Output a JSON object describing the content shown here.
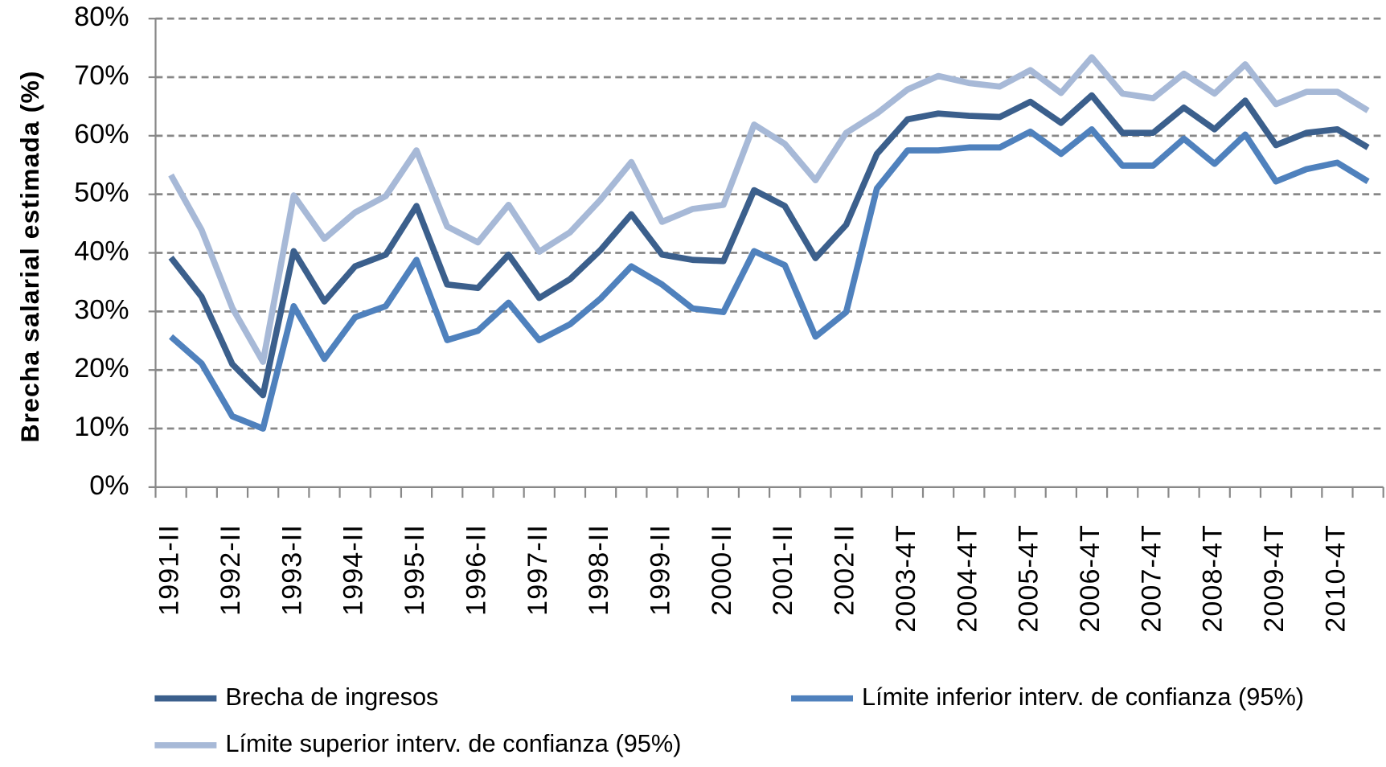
{
  "chart_data": {
    "type": "line",
    "y_label": "Brecha salarial  estimada (%)",
    "categories": [
      "1991-II",
      null,
      "1992-II",
      null,
      "1993-II",
      null,
      "1994-II",
      null,
      "1995-II",
      null,
      "1996-II",
      null,
      "1997-II",
      null,
      "1998-II",
      null,
      "1999-II",
      null,
      "2000-II",
      null,
      "2001-II",
      null,
      "2002-II",
      null,
      "2003-4T",
      null,
      "2004-4T",
      null,
      "2005-4T",
      null,
      "2006-4T",
      null,
      "2007-4T",
      null,
      "2008-4T",
      null,
      "2009-4T",
      null,
      "2010-4T",
      null
    ],
    "series": [
      {
        "name": "Brecha de ingresos",
        "color": "#3b5f8c",
        "values": [
          39.2,
          32.5,
          21,
          15.7,
          40.3,
          31.7,
          37.7,
          39.7,
          48,
          34.6,
          34,
          39.7,
          32.3,
          35.5,
          40.5,
          46.6,
          39.7,
          38.8,
          38.6,
          50.7,
          48,
          39.1,
          44.8,
          56.9,
          62.8,
          63.8,
          63.4,
          63.2,
          65.8,
          62.2,
          66.9,
          60.5,
          60.5,
          64.8,
          61.1,
          66,
          58.4,
          60.5,
          61.1,
          58
        ]
      },
      {
        "name": "Límite inferior interv. de confianza (95%)",
        "color": "#4f81bd",
        "values": [
          25.7,
          21.1,
          12.1,
          10,
          30.9,
          21.9,
          29,
          30.9,
          38.8,
          25.1,
          26.7,
          31.5,
          25.1,
          27.8,
          32.2,
          37.7,
          34.6,
          30.5,
          29.9,
          40.3,
          37.9,
          25.7,
          29.9,
          51,
          57.5,
          57.5,
          58,
          58,
          60.7,
          56.9,
          61.1,
          54.9,
          54.9,
          59.5,
          55.2,
          60.2,
          52.2,
          54.3,
          55.4,
          52.2
        ]
      },
      {
        "name": "Límite superior interv. de confianza (95%)",
        "color": "#a7b9d7",
        "values": [
          53.3,
          43.9,
          30.6,
          21.4,
          49.8,
          42.4,
          46.9,
          49.7,
          57.5,
          44.5,
          41.8,
          48.2,
          40.2,
          43.5,
          49.1,
          55.5,
          45.3,
          47.5,
          48.2,
          61.9,
          58.6,
          52.4,
          60.5,
          63.8,
          67.9,
          70.2,
          69,
          68.4,
          71.2,
          67.3,
          73.4,
          67.2,
          66.4,
          70.6,
          67.2,
          72.2,
          65.4,
          67.5,
          67.5,
          64.3
        ]
      }
    ],
    "ylim": [
      0,
      80
    ],
    "yticks": [
      {
        "value": 0,
        "label": "0%"
      },
      {
        "value": 10,
        "label": "10%"
      },
      {
        "value": 20,
        "label": "20%"
      },
      {
        "value": 30,
        "label": "30%"
      },
      {
        "value": 40,
        "label": "40%"
      },
      {
        "value": 50,
        "label": "50%"
      },
      {
        "value": 60,
        "label": "60%"
      },
      {
        "value": 70,
        "label": "70%"
      },
      {
        "value": 80,
        "label": "80%"
      }
    ],
    "grid": true
  }
}
